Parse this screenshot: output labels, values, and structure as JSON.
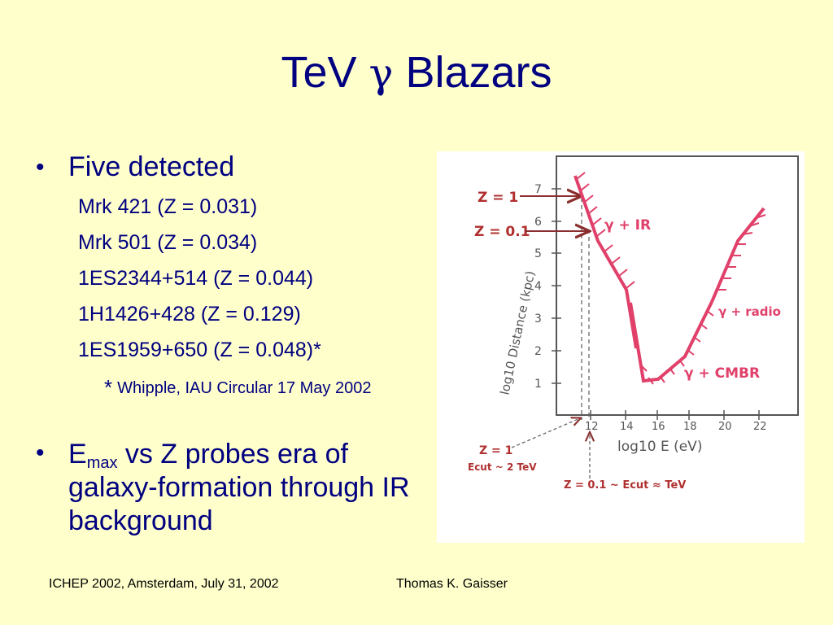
{
  "title": {
    "prefix": "TeV ",
    "gamma": "γ",
    "suffix": " Blazars"
  },
  "bullet1": {
    "label": "Five detected",
    "items": [
      "Mrk 421 (Z = 0.031)",
      "Mrk 501 (Z = 0.034)",
      "1ES2344+514 (Z = 0.044)",
      "1H1426+428 (Z = 0.129)",
      "1ES1959+650 (Z = 0.048)*"
    ],
    "note_star": "*",
    "note_text": "Whipple, IAU Circular 17 May 2002"
  },
  "bullet2": {
    "e": "E",
    "sub": "max",
    "rest": " vs Z probes era of galaxy-formation through IR background"
  },
  "footer": {
    "left": "ICHEP 2002, Amsterdam, July 31, 2002",
    "right": "Thomas K. Gaisser"
  },
  "figure": {
    "y_label": "log10 Distance (kpc)",
    "x_label": "log10 E (eV)",
    "y_ticks": [
      "1",
      "2",
      "3",
      "4",
      "5",
      "6",
      "7"
    ],
    "x_ticks": [
      "12",
      "14",
      "16",
      "18",
      "20",
      "22"
    ],
    "z1_label": "Z = 1",
    "z01_label": "Z = 0.1",
    "curve_ir": "γ + IR",
    "curve_radio": "γ + radio",
    "curve_cmbr": "γ + CMBR",
    "note_z1_a": "Z = 1",
    "note_z1_b": "Ecut ~ 2 TeV",
    "note_z01": "Z = 0.1 ~ Ecut ≈ TeV",
    "colors": {
      "ink": "#7A3E2E",
      "red": "#E0406A",
      "arrow": "#8B2E2E"
    }
  }
}
